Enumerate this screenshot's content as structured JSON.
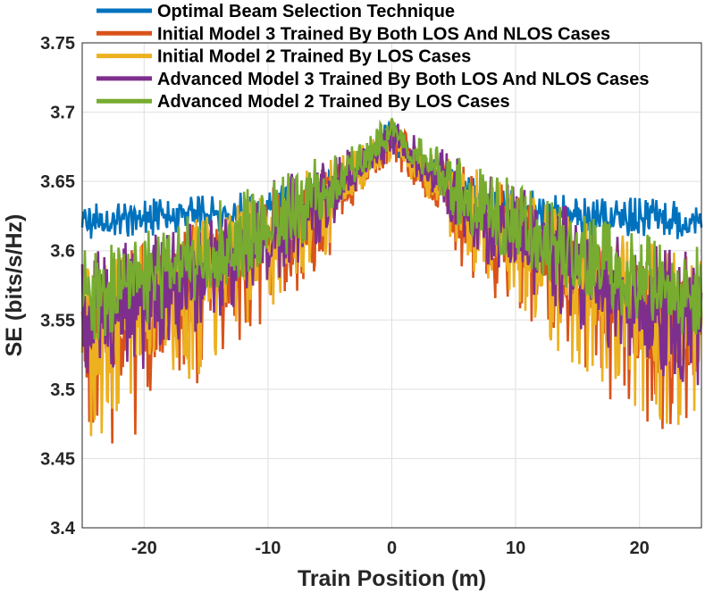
{
  "chart_data": {
    "type": "line",
    "xlabel": "Train Position (m)",
    "ylabel": "SE (bits/s/Hz)",
    "xlim": [
      -25,
      25
    ],
    "ylim": [
      3.4,
      3.75
    ],
    "xticks": [
      -20,
      -10,
      0,
      10,
      20
    ],
    "xtick_labels": [
      "-20",
      "-10",
      "0",
      "10",
      "20"
    ],
    "yticks": [
      3.4,
      3.45,
      3.5,
      3.55,
      3.6,
      3.65,
      3.7,
      3.75
    ],
    "ytick_labels": [
      "3.4",
      "3.45",
      "3.5",
      "3.55",
      "3.6",
      "3.65",
      "3.7",
      "3.75"
    ],
    "grid": true,
    "legend_position": "top",
    "x": [
      -25,
      -22.5,
      -20,
      -17.5,
      -15,
      -12.5,
      -10,
      -7.5,
      -5,
      -4,
      -2.5,
      -1,
      0,
      1,
      2.5,
      4,
      5,
      7.5,
      10,
      12.5,
      15,
      17.5,
      20,
      22.5,
      25
    ],
    "series": [
      {
        "name": "Optimal Beam Selection Technique",
        "color": "#0072bd",
        "envelope_mean": [
          3.62,
          3.622,
          3.623,
          3.624,
          3.625,
          3.627,
          3.63,
          3.635,
          3.642,
          3.65,
          3.66,
          3.675,
          3.69,
          3.675,
          3.66,
          3.65,
          3.642,
          3.635,
          3.63,
          3.627,
          3.625,
          3.624,
          3.623,
          3.622,
          3.62
        ],
        "envelope_low": [
          3.605,
          3.608,
          3.61,
          3.611,
          3.612,
          3.614,
          3.617,
          3.622,
          3.63,
          3.64,
          3.65,
          3.662,
          3.67,
          3.662,
          3.65,
          3.64,
          3.63,
          3.622,
          3.617,
          3.614,
          3.612,
          3.611,
          3.61,
          3.608,
          3.605
        ],
        "envelope_high": [
          3.635,
          3.637,
          3.638,
          3.639,
          3.64,
          3.642,
          3.645,
          3.65,
          3.658,
          3.665,
          3.672,
          3.688,
          3.695,
          3.688,
          3.672,
          3.665,
          3.658,
          3.65,
          3.645,
          3.642,
          3.64,
          3.639,
          3.638,
          3.637,
          3.635
        ]
      },
      {
        "name": "Initial Model 3 Trained By Both LOS And NLOS Cases",
        "color": "#d95319",
        "envelope_mean": [
          3.54,
          3.545,
          3.555,
          3.565,
          3.58,
          3.592,
          3.605,
          3.615,
          3.63,
          3.645,
          3.655,
          3.67,
          3.685,
          3.67,
          3.655,
          3.645,
          3.63,
          3.615,
          3.605,
          3.592,
          3.58,
          3.565,
          3.555,
          3.545,
          3.54
        ],
        "envelope_low": [
          3.47,
          3.46,
          3.47,
          3.49,
          3.51,
          3.53,
          3.55,
          3.57,
          3.595,
          3.62,
          3.64,
          3.655,
          3.662,
          3.655,
          3.64,
          3.62,
          3.595,
          3.57,
          3.55,
          3.53,
          3.51,
          3.49,
          3.47,
          3.46,
          3.47
        ],
        "envelope_high": [
          3.59,
          3.6,
          3.605,
          3.615,
          3.625,
          3.635,
          3.645,
          3.655,
          3.665,
          3.67,
          3.675,
          3.688,
          3.695,
          3.688,
          3.675,
          3.67,
          3.665,
          3.655,
          3.645,
          3.635,
          3.625,
          3.615,
          3.605,
          3.6,
          3.59
        ]
      },
      {
        "name": "Initial Model 2 Trained By LOS Cases",
        "color": "#edb120",
        "envelope_mean": [
          3.545,
          3.548,
          3.557,
          3.568,
          3.582,
          3.594,
          3.607,
          3.617,
          3.632,
          3.646,
          3.656,
          3.671,
          3.686,
          3.671,
          3.656,
          3.646,
          3.632,
          3.617,
          3.607,
          3.594,
          3.582,
          3.568,
          3.557,
          3.548,
          3.545
        ],
        "envelope_low": [
          3.46,
          3.47,
          3.48,
          3.495,
          3.515,
          3.535,
          3.555,
          3.575,
          3.6,
          3.622,
          3.642,
          3.657,
          3.664,
          3.657,
          3.642,
          3.622,
          3.6,
          3.575,
          3.555,
          3.535,
          3.515,
          3.495,
          3.48,
          3.47,
          3.46
        ],
        "envelope_high": [
          3.595,
          3.602,
          3.607,
          3.617,
          3.627,
          3.637,
          3.647,
          3.657,
          3.667,
          3.672,
          3.677,
          3.689,
          3.695,
          3.689,
          3.677,
          3.672,
          3.667,
          3.657,
          3.647,
          3.637,
          3.627,
          3.617,
          3.607,
          3.602,
          3.595
        ]
      },
      {
        "name": "Advanced Model 3 Trained By Both LOS And NLOS Cases",
        "color": "#7e2f8e",
        "envelope_mean": [
          3.555,
          3.558,
          3.565,
          3.575,
          3.588,
          3.6,
          3.612,
          3.622,
          3.636,
          3.65,
          3.66,
          3.674,
          3.688,
          3.674,
          3.66,
          3.65,
          3.636,
          3.622,
          3.612,
          3.6,
          3.588,
          3.575,
          3.565,
          3.558,
          3.555
        ],
        "envelope_low": [
          3.5,
          3.505,
          3.515,
          3.53,
          3.545,
          3.56,
          3.575,
          3.59,
          3.61,
          3.63,
          3.648,
          3.66,
          3.666,
          3.66,
          3.648,
          3.63,
          3.61,
          3.59,
          3.575,
          3.56,
          3.545,
          3.53,
          3.515,
          3.505,
          3.5
        ],
        "envelope_high": [
          3.598,
          3.604,
          3.609,
          3.619,
          3.629,
          3.639,
          3.649,
          3.659,
          3.669,
          3.674,
          3.678,
          3.69,
          3.695,
          3.69,
          3.678,
          3.674,
          3.669,
          3.659,
          3.649,
          3.639,
          3.629,
          3.619,
          3.609,
          3.604,
          3.598
        ]
      },
      {
        "name": "Advanced Model 2 Trained By LOS Cases",
        "color": "#77ac30",
        "envelope_mean": [
          3.57,
          3.572,
          3.578,
          3.586,
          3.597,
          3.607,
          3.618,
          3.628,
          3.64,
          3.653,
          3.663,
          3.676,
          3.69,
          3.676,
          3.663,
          3.653,
          3.64,
          3.628,
          3.618,
          3.607,
          3.597,
          3.586,
          3.578,
          3.572,
          3.57
        ],
        "envelope_low": [
          3.53,
          3.535,
          3.545,
          3.555,
          3.565,
          3.578,
          3.59,
          3.602,
          3.62,
          3.638,
          3.652,
          3.664,
          3.67,
          3.664,
          3.652,
          3.638,
          3.62,
          3.602,
          3.59,
          3.578,
          3.565,
          3.555,
          3.545,
          3.535,
          3.53
        ],
        "envelope_high": [
          3.605,
          3.61,
          3.615,
          3.622,
          3.632,
          3.642,
          3.652,
          3.662,
          3.672,
          3.676,
          3.68,
          3.692,
          3.695,
          3.692,
          3.68,
          3.676,
          3.672,
          3.662,
          3.652,
          3.642,
          3.632,
          3.622,
          3.615,
          3.61,
          3.605
        ]
      }
    ]
  }
}
